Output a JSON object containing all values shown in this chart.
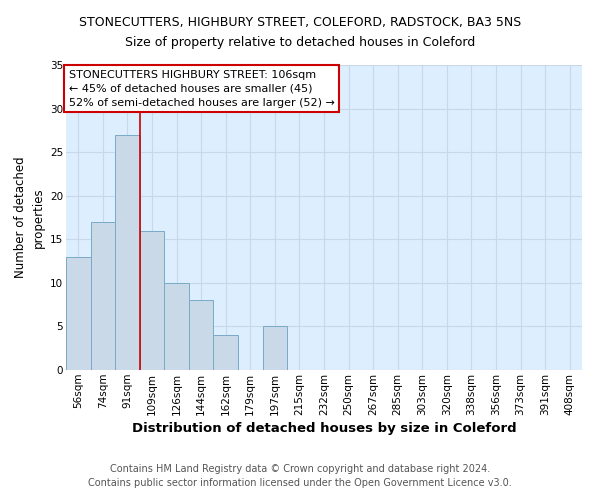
{
  "title": "STONECUTTERS, HIGHBURY STREET, COLEFORD, RADSTOCK, BA3 5NS",
  "subtitle": "Size of property relative to detached houses in Coleford",
  "xlabel": "Distribution of detached houses by size in Coleford",
  "ylabel": "Number of detached\nproperties",
  "categories": [
    "56sqm",
    "74sqm",
    "91sqm",
    "109sqm",
    "126sqm",
    "144sqm",
    "162sqm",
    "179sqm",
    "197sqm",
    "215sqm",
    "232sqm",
    "250sqm",
    "267sqm",
    "285sqm",
    "303sqm",
    "320sqm",
    "338sqm",
    "356sqm",
    "373sqm",
    "391sqm",
    "408sqm"
  ],
  "values": [
    13,
    17,
    27,
    16,
    10,
    8,
    4,
    0,
    5,
    0,
    0,
    0,
    0,
    0,
    0,
    0,
    0,
    0,
    0,
    0,
    0
  ],
  "bar_color": "#c9d9e8",
  "bar_edge_color": "#7aaac8",
  "vline_x": 2.5,
  "vline_color": "#cc0000",
  "annotation_text": "STONECUTTERS HIGHBURY STREET: 106sqm\n← 45% of detached houses are smaller (45)\n52% of semi-detached houses are larger (52) →",
  "annotation_box_color": "white",
  "annotation_box_edge_color": "#cc0000",
  "ylim": [
    0,
    35
  ],
  "yticks": [
    0,
    5,
    10,
    15,
    20,
    25,
    30,
    35
  ],
  "grid_color": "#c8d8e8",
  "background_color": "#ddeeff",
  "footer_text": "Contains HM Land Registry data © Crown copyright and database right 2024.\nContains public sector information licensed under the Open Government Licence v3.0.",
  "title_fontsize": 9,
  "subtitle_fontsize": 9,
  "xlabel_fontsize": 9.5,
  "ylabel_fontsize": 8.5,
  "tick_fontsize": 7.5,
  "annotation_fontsize": 8,
  "footer_fontsize": 7
}
